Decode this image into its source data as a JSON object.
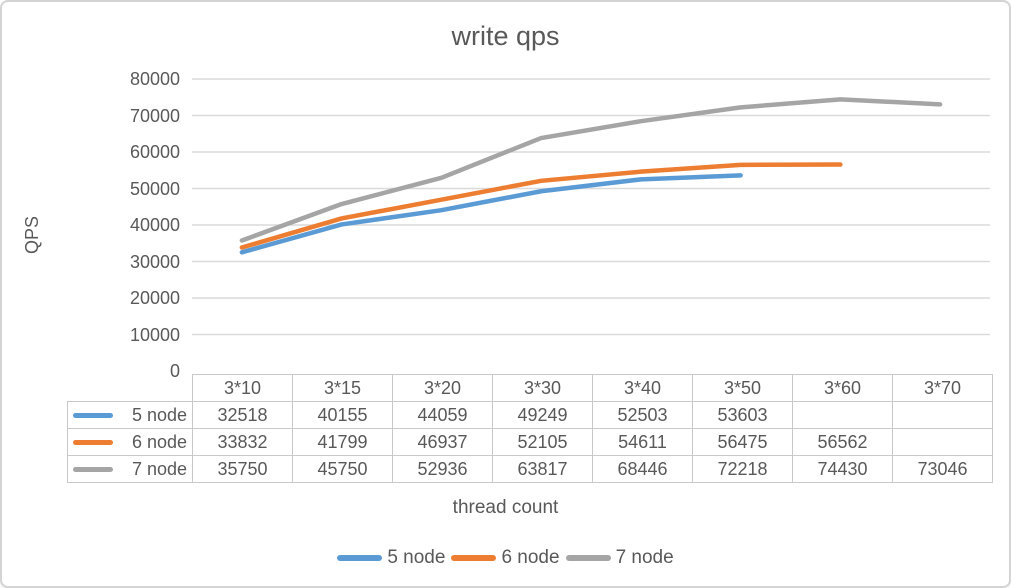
{
  "chart_data": {
    "type": "line",
    "title": "write qps",
    "xlabel": "thread count",
    "ylabel": "QPS",
    "categories": [
      "3*10",
      "3*15",
      "3*20",
      "3*30",
      "3*40",
      "3*50",
      "3*60",
      "3*70"
    ],
    "series": [
      {
        "name": "5 node",
        "color": "#5B9BD5",
        "values": [
          32518,
          40155,
          44059,
          49249,
          52503,
          53603,
          null,
          null
        ]
      },
      {
        "name": "6 node",
        "color": "#ED7D31",
        "values": [
          33832,
          41799,
          46937,
          52105,
          54611,
          56475,
          56562,
          null
        ]
      },
      {
        "name": "7 node",
        "color": "#A5A5A5",
        "values": [
          35750,
          45750,
          52936,
          63817,
          68446,
          72218,
          74430,
          73046
        ]
      }
    ],
    "ylim": [
      0,
      80000
    ],
    "ytick_step": 10000,
    "yticks": [
      "0",
      "10000",
      "20000",
      "30000",
      "40000",
      "50000",
      "60000",
      "70000",
      "80000"
    ],
    "grid": true,
    "gridline_color": "#dadada",
    "legend_position": "bottom",
    "data_table": true,
    "text_color": "#595959"
  }
}
